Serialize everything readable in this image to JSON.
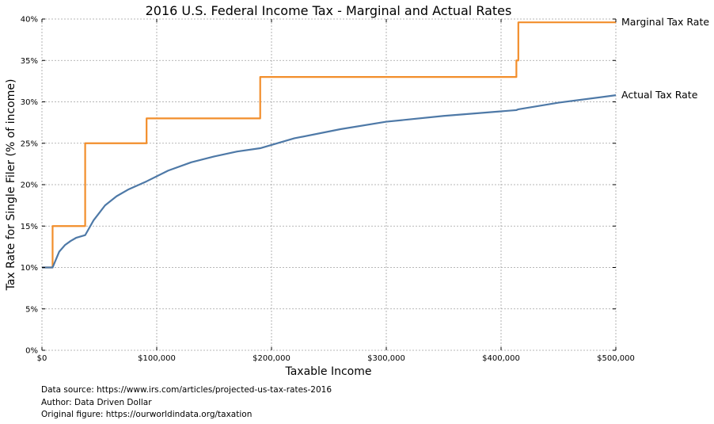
{
  "chart_data": {
    "type": "line",
    "title": "2016 U.S. Federal Income Tax - Marginal and Actual Rates",
    "xlabel": "Taxable Income",
    "ylabel": "Tax Rate for Single Filer (% of income)",
    "xlim": [
      0,
      500000
    ],
    "ylim": [
      0,
      40
    ],
    "x_ticks": [
      0,
      100000,
      200000,
      300000,
      400000,
      500000
    ],
    "x_tick_labels": [
      "$0",
      "$100,000",
      "$200,000",
      "$300,000",
      "$400,000",
      "$500,000"
    ],
    "y_ticks": [
      0,
      5,
      10,
      15,
      20,
      25,
      30,
      35,
      40
    ],
    "y_tick_labels": [
      "0%",
      "5%",
      "10%",
      "15%",
      "20%",
      "25%",
      "30%",
      "35%",
      "40%"
    ],
    "grid": true,
    "series": [
      {
        "name": "Marginal Tax Rate",
        "color": "#f28e2b",
        "step": true,
        "brackets": [
          {
            "from": 0,
            "to": 9275,
            "rate": 10
          },
          {
            "from": 9275,
            "to": 37650,
            "rate": 15
          },
          {
            "from": 37650,
            "to": 91150,
            "rate": 25
          },
          {
            "from": 91150,
            "to": 190150,
            "rate": 28
          },
          {
            "from": 190150,
            "to": 413350,
            "rate": 33
          },
          {
            "from": 413350,
            "to": 415050,
            "rate": 35
          },
          {
            "from": 415050,
            "to": 500000,
            "rate": 39.6
          }
        ]
      },
      {
        "name": "Actual Tax Rate",
        "color": "#4e79a7",
        "derived_from": "Marginal Tax Rate",
        "x": [
          0,
          9275,
          15000,
          20000,
          25000,
          30000,
          37650,
          45000,
          55000,
          65000,
          75000,
          91150,
          110000,
          130000,
          150000,
          170000,
          190150,
          220000,
          260000,
          300000,
          350000,
          413350,
          415050,
          450000,
          500000
        ],
        "y": [
          10,
          10,
          11.9,
          12.7,
          13.2,
          13.6,
          13.9,
          15.7,
          17.5,
          18.6,
          19.4,
          20.4,
          21.7,
          22.7,
          23.4,
          24.0,
          24.4,
          25.6,
          26.7,
          27.6,
          28.3,
          29.0,
          29.1,
          29.9,
          30.8
        ]
      }
    ]
  },
  "footnotes": [
    "Data source: https://www.irs.com/articles/projected-us-tax-rates-2016",
    "Author: Data Driven Dollar",
    "Original figure: https://ourworldindata.org/taxation"
  ]
}
